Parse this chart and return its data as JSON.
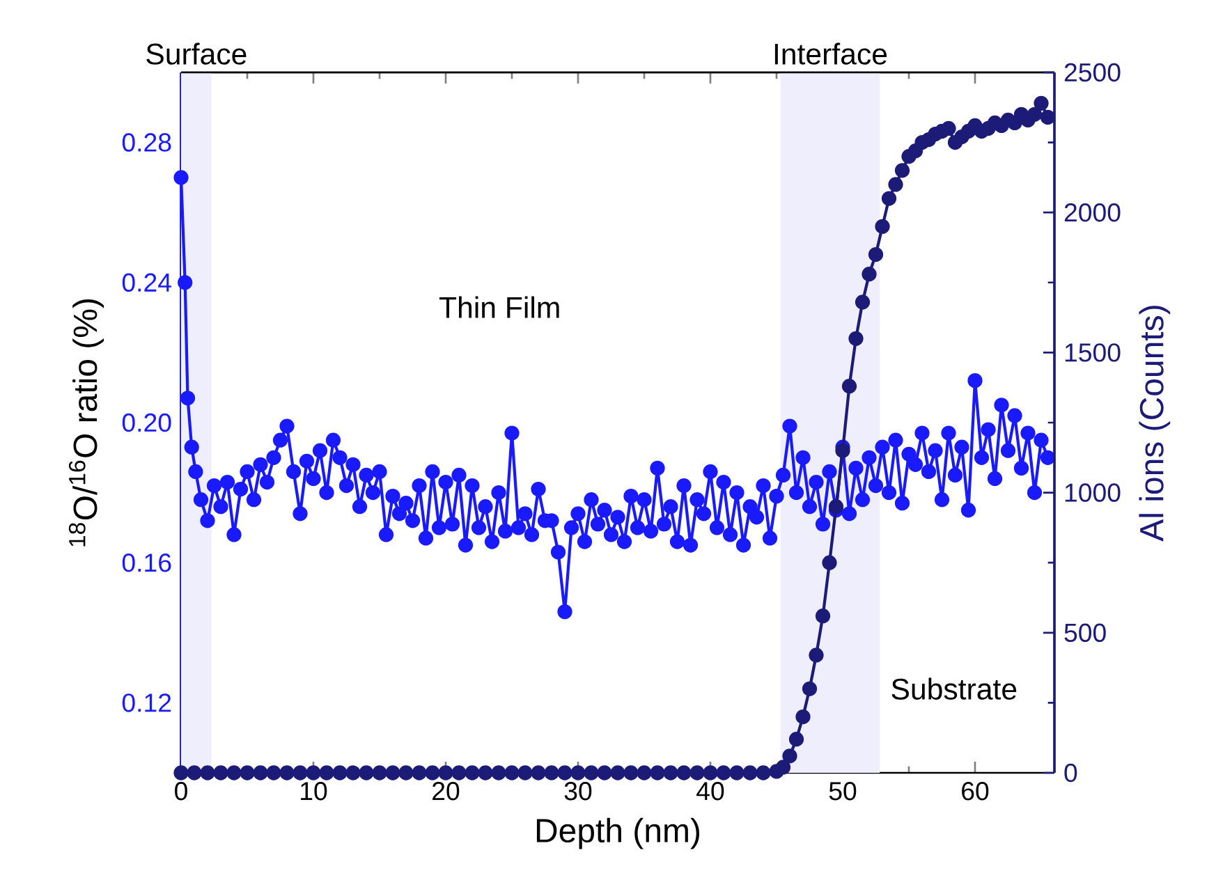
{
  "chart_data": {
    "type": "line",
    "xlabel": "Depth (nm)",
    "ylabel": "$^{18}$O/$^{16}$O ratio (%)",
    "y2label": "Al ions (Counts)",
    "xlim": [
      0,
      66
    ],
    "xticks": [
      0,
      10,
      20,
      30,
      40,
      50,
      60
    ],
    "ylim": [
      0.1,
      0.3
    ],
    "yticks": [
      0.12,
      0.16,
      {
        "value": 0.2,
        "label": "0.20"
      },
      0.24,
      0.28
    ],
    "y2lim": [
      0,
      2500
    ],
    "y2ticks": [
      0,
      500,
      1000,
      1500,
      2000,
      2500
    ],
    "marker": "circle",
    "line_style": "solid",
    "bands": [
      {
        "axis": "x",
        "from": 0,
        "to": 2.3,
        "label": "Surface",
        "color": "#eeeefc"
      },
      {
        "axis": "x",
        "from": 45.3,
        "to": 52.8,
        "label": "Interface",
        "color": "#eeeefc"
      }
    ],
    "annotations": [
      "Thin Film",
      "Substrate"
    ],
    "series": [
      {
        "color": "#1a1aff",
        "x": [
          0,
          0.3,
          0.5,
          0.8,
          1.1,
          1.5,
          2,
          2.5,
          3,
          3.5,
          4,
          4.5,
          5,
          5.5,
          6,
          6.5,
          7,
          7.5,
          8,
          8.5,
          9,
          9.5,
          10,
          10.5,
          11,
          11.5,
          12,
          12.5,
          13,
          13.5,
          14,
          14.5,
          15,
          15.5,
          16,
          16.5,
          17,
          17.5,
          18,
          18.5,
          19,
          19.5,
          20,
          20.5,
          21,
          21.5,
          22,
          22.5,
          23,
          23.5,
          24,
          24.5,
          25,
          25.5,
          26,
          26.5,
          27,
          27.5,
          28,
          28.5,
          29,
          29.5,
          30,
          30.5,
          31,
          31.5,
          32,
          32.5,
          33,
          33.5,
          34,
          34.5,
          35,
          35.5,
          36,
          36.5,
          37,
          37.5,
          38,
          38.5,
          39,
          39.5,
          40,
          40.5,
          41,
          41.5,
          42,
          42.5,
          43,
          43.5,
          44,
          44.5,
          45,
          45.5,
          46,
          46.5,
          47,
          47.5,
          48,
          48.5,
          49,
          49.5,
          50,
          50.5,
          51,
          51.5,
          52,
          52.5,
          53,
          53.5,
          54,
          54.5,
          55,
          55.5,
          56,
          56.5,
          57,
          57.5,
          58,
          58.5,
          59,
          59.5,
          60,
          60.5,
          61,
          61.5,
          62,
          62.5,
          63,
          63.5,
          64,
          64.5,
          65,
          65.5
        ],
        "values": [
          0.27,
          0.24,
          0.207,
          0.193,
          0.186,
          0.178,
          0.172,
          0.182,
          0.176,
          0.183,
          0.168,
          0.181,
          0.186,
          0.178,
          0.188,
          0.183,
          0.19,
          0.195,
          0.199,
          0.186,
          0.174,
          0.189,
          0.184,
          0.192,
          0.18,
          0.195,
          0.19,
          0.182,
          0.188,
          0.176,
          0.185,
          0.18,
          0.186,
          0.168,
          0.179,
          0.174,
          0.177,
          0.172,
          0.182,
          0.167,
          0.186,
          0.17,
          0.183,
          0.171,
          0.185,
          0.165,
          0.182,
          0.17,
          0.176,
          0.166,
          0.18,
          0.169,
          0.197,
          0.17,
          0.174,
          0.168,
          0.181,
          0.172,
          0.172,
          0.163,
          0.146,
          0.17,
          0.174,
          0.166,
          0.178,
          0.171,
          0.175,
          0.168,
          0.173,
          0.166,
          0.179,
          0.17,
          0.178,
          0.169,
          0.187,
          0.171,
          0.176,
          0.166,
          0.182,
          0.165,
          0.178,
          0.174,
          0.186,
          0.17,
          0.183,
          0.168,
          0.18,
          0.165,
          0.176,
          0.173,
          0.182,
          0.167,
          0.179,
          0.185,
          0.199,
          0.18,
          0.19,
          0.176,
          0.183,
          0.171,
          0.186,
          0.175,
          0.193,
          0.174,
          0.187,
          0.178,
          0.19,
          0.182,
          0.193,
          0.18,
          0.195,
          0.177,
          0.191,
          0.188,
          0.197,
          0.186,
          0.192,
          0.178,
          0.197,
          0.185,
          0.193,
          0.175,
          0.212,
          0.19,
          0.198,
          0.184,
          0.205,
          0.192,
          0.202,
          0.187,
          0.197,
          0.18,
          0.195,
          0.19
        ]
      },
      {
        "color": "#1c1c78",
        "axis": "y2",
        "x": [
          0,
          1,
          2,
          3,
          4,
          5,
          6,
          7,
          8,
          9,
          10,
          11,
          12,
          13,
          14,
          15,
          16,
          17,
          18,
          19,
          20,
          21,
          22,
          23,
          24,
          25,
          26,
          27,
          28,
          29,
          30,
          31,
          32,
          33,
          34,
          35,
          36,
          37,
          38,
          39,
          40,
          41,
          42,
          43,
          44,
          45,
          45.5,
          46,
          46.5,
          47,
          47.5,
          48,
          48.5,
          49,
          49.5,
          50,
          50.5,
          51,
          51.5,
          52,
          52.5,
          53,
          53.5,
          54,
          54.5,
          55,
          55.5,
          56,
          56.5,
          57,
          57.5,
          58,
          58.5,
          59,
          59.5,
          60,
          60.5,
          61,
          61.5,
          62,
          62.5,
          63,
          63.5,
          64,
          64.5,
          65,
          65.5
        ],
        "values": [
          0,
          0,
          0,
          0,
          0,
          0,
          0,
          0,
          0,
          0,
          0,
          0,
          0,
          0,
          0,
          0,
          0,
          0,
          0,
          0,
          0,
          0,
          0,
          0,
          0,
          0,
          0,
          0,
          0,
          0,
          0,
          0,
          0,
          0,
          0,
          0,
          0,
          0,
          0,
          0,
          0,
          0,
          0,
          0,
          0,
          5,
          20,
          60,
          120,
          200,
          300,
          420,
          560,
          750,
          950,
          1150,
          1380,
          1550,
          1680,
          1780,
          1850,
          1950,
          2050,
          2100,
          2150,
          2200,
          2220,
          2250,
          2260,
          2280,
          2290,
          2300,
          2250,
          2270,
          2290,
          2310,
          2290,
          2300,
          2320,
          2310,
          2330,
          2320,
          2350,
          2330,
          2350,
          2390,
          2340
        ]
      }
    ]
  }
}
